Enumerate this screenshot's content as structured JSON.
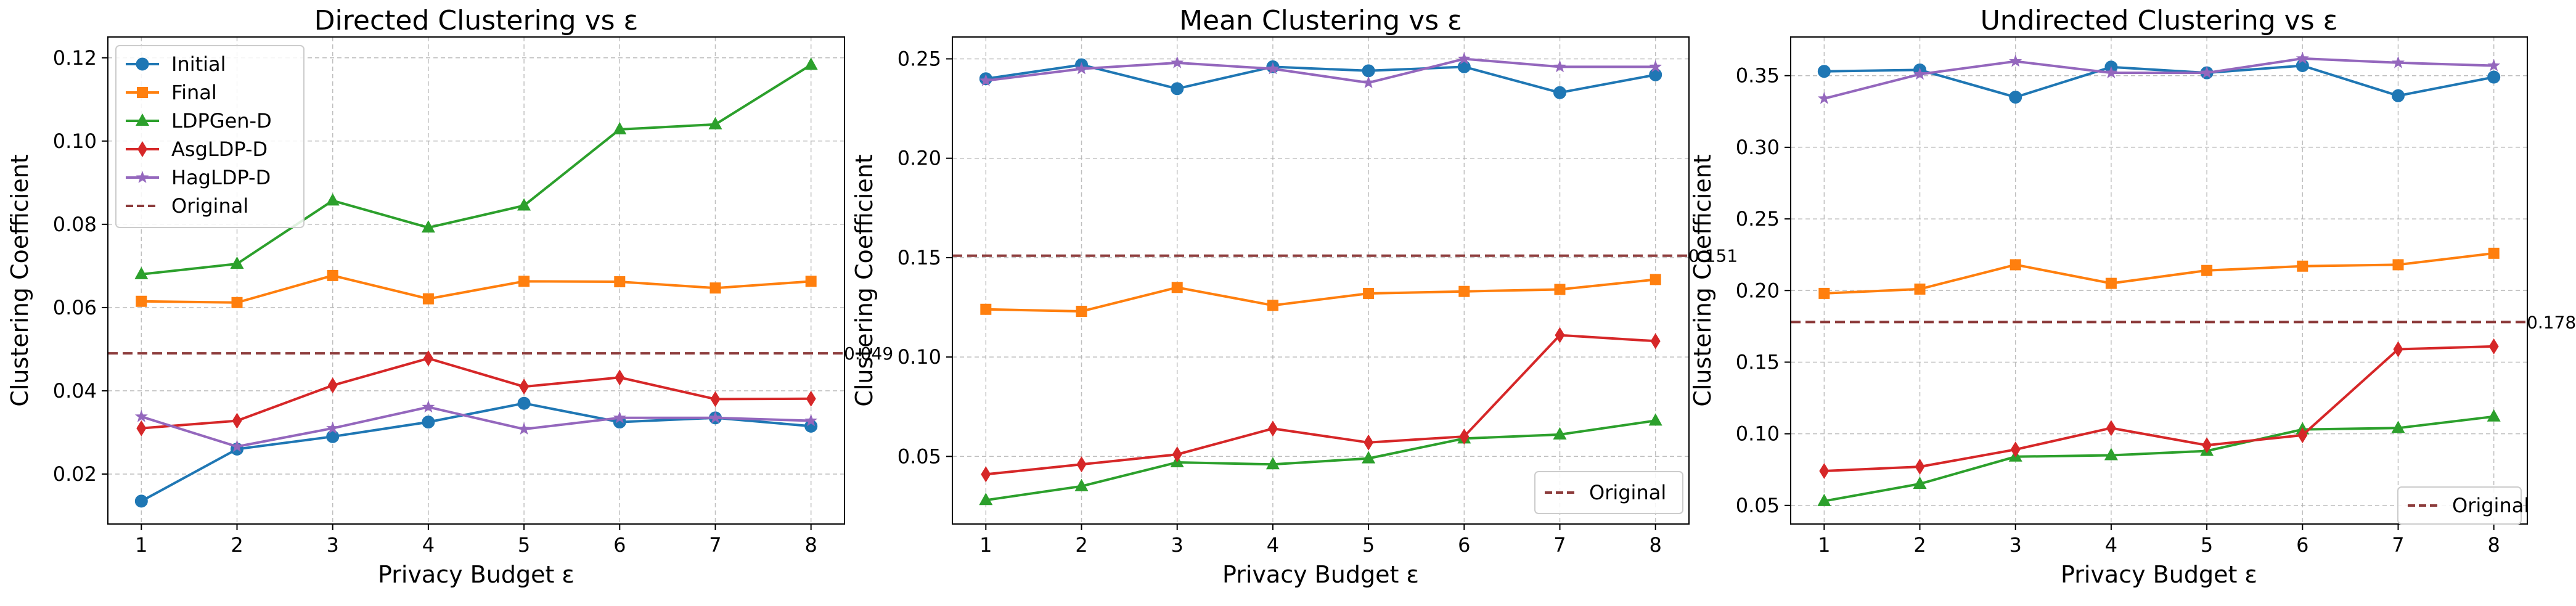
{
  "chart_data": [
    {
      "type": "line",
      "title": "Directed Clustering vs ε",
      "xlabel": "Privacy Budget ε",
      "ylabel": "Clustering Coefficient",
      "x": [
        1,
        2,
        3,
        4,
        5,
        6,
        7,
        8
      ],
      "xticks": [
        "1",
        "2",
        "3",
        "4",
        "5",
        "6",
        "7",
        "8"
      ],
      "ylim": [
        0.008,
        0.125
      ],
      "yticks": [
        0.02,
        0.04,
        0.06,
        0.08,
        0.1,
        0.12
      ],
      "ytick_labels": [
        "0.02",
        "0.04",
        "0.06",
        "0.08",
        "0.10",
        "0.12"
      ],
      "grid": true,
      "legend": "top-left",
      "series": [
        {
          "name": "Initial",
          "color": "#1f77b4",
          "marker": "circle",
          "values": [
            0.0135,
            0.026,
            0.029,
            0.0325,
            0.037,
            0.0325,
            0.0335,
            0.0315
          ]
        },
        {
          "name": "Final",
          "color": "#ff7f0e",
          "marker": "square",
          "values": [
            0.0615,
            0.0612,
            0.0677,
            0.0621,
            0.0663,
            0.0662,
            0.0647,
            0.0663
          ]
        },
        {
          "name": "LDPGen-D",
          "color": "#2ca02c",
          "marker": "triangle",
          "values": [
            0.068,
            0.0705,
            0.0857,
            0.0792,
            0.0845,
            0.1028,
            0.104,
            0.1183
          ]
        },
        {
          "name": "AsgLDP-D",
          "color": "#d62728",
          "marker": "diamond",
          "values": [
            0.031,
            0.0328,
            0.0413,
            0.0478,
            0.041,
            0.0432,
            0.038,
            0.0381
          ]
        },
        {
          "name": "HagLDP-D",
          "color": "#9467bd",
          "marker": "star",
          "values": [
            0.0338,
            0.0266,
            0.031,
            0.0361,
            0.0308,
            0.0335,
            0.0335,
            0.0328
          ]
        }
      ],
      "reference": {
        "name": "Original",
        "value": 0.049,
        "label": "0.049",
        "color": "#8c3b3b"
      }
    },
    {
      "type": "line",
      "title": "Mean Clustering vs ε",
      "xlabel": "Privacy Budget ε",
      "ylabel": "Clustering Coefficient",
      "x": [
        1,
        2,
        3,
        4,
        5,
        6,
        7,
        8
      ],
      "xticks": [
        "1",
        "2",
        "3",
        "4",
        "5",
        "6",
        "7",
        "8"
      ],
      "ylim": [
        0.016,
        0.261
      ],
      "yticks": [
        0.05,
        0.1,
        0.15,
        0.2,
        0.25
      ],
      "ytick_labels": [
        "0.05",
        "0.10",
        "0.15",
        "0.20",
        "0.25"
      ],
      "grid": true,
      "legend": "bottom-right",
      "series": [
        {
          "name": "Initial",
          "color": "#1f77b4",
          "marker": "circle",
          "values": [
            0.24,
            0.247,
            0.235,
            0.246,
            0.244,
            0.246,
            0.233,
            0.242
          ]
        },
        {
          "name": "Final",
          "color": "#ff7f0e",
          "marker": "square",
          "values": [
            0.124,
            0.123,
            0.135,
            0.126,
            0.132,
            0.133,
            0.134,
            0.139
          ]
        },
        {
          "name": "LDPGen-D",
          "color": "#2ca02c",
          "marker": "triangle",
          "values": [
            0.028,
            0.035,
            0.047,
            0.046,
            0.049,
            0.059,
            0.061,
            0.068
          ]
        },
        {
          "name": "AsgLDP-D",
          "color": "#d62728",
          "marker": "diamond",
          "values": [
            0.041,
            0.046,
            0.051,
            0.064,
            0.057,
            0.06,
            0.111,
            0.108
          ]
        },
        {
          "name": "HagLDP-D",
          "color": "#9467bd",
          "marker": "star",
          "values": [
            0.239,
            0.245,
            0.248,
            0.245,
            0.238,
            0.25,
            0.246,
            0.246
          ]
        }
      ],
      "reference": {
        "name": "Original",
        "value": 0.151,
        "label": "0.151",
        "color": "#8c3b3b"
      }
    },
    {
      "type": "line",
      "title": "Undirected Clustering vs ε",
      "xlabel": "Privacy Budget ε",
      "ylabel": "Clustering Coefficient",
      "x": [
        1,
        2,
        3,
        4,
        5,
        6,
        7,
        8
      ],
      "xticks": [
        "1",
        "2",
        "3",
        "4",
        "5",
        "6",
        "7",
        "8"
      ],
      "ylim": [
        0.037,
        0.377
      ],
      "yticks": [
        0.05,
        0.1,
        0.15,
        0.2,
        0.25,
        0.3,
        0.35
      ],
      "ytick_labels": [
        "0.05",
        "0.10",
        "0.15",
        "0.20",
        "0.25",
        "0.30",
        "0.35"
      ],
      "grid": true,
      "legend": "bottom-right",
      "series": [
        {
          "name": "Initial",
          "color": "#1f77b4",
          "marker": "circle",
          "values": [
            0.353,
            0.354,
            0.335,
            0.356,
            0.352,
            0.357,
            0.336,
            0.349
          ]
        },
        {
          "name": "Final",
          "color": "#ff7f0e",
          "marker": "square",
          "values": [
            0.198,
            0.201,
            0.218,
            0.205,
            0.214,
            0.217,
            0.218,
            0.226
          ]
        },
        {
          "name": "LDPGen-D",
          "color": "#2ca02c",
          "marker": "triangle",
          "values": [
            0.053,
            0.065,
            0.084,
            0.085,
            0.088,
            0.103,
            0.104,
            0.112
          ]
        },
        {
          "name": "AsgLDP-D",
          "color": "#d62728",
          "marker": "diamond",
          "values": [
            0.074,
            0.077,
            0.089,
            0.104,
            0.092,
            0.099,
            0.159,
            0.161
          ]
        },
        {
          "name": "HagLDP-D",
          "color": "#9467bd",
          "marker": "star",
          "values": [
            0.334,
            0.351,
            0.36,
            0.352,
            0.352,
            0.362,
            0.359,
            0.357
          ]
        }
      ],
      "reference": {
        "name": "Original",
        "value": 0.178,
        "label": "0.178",
        "color": "#8c3b3b"
      }
    }
  ]
}
